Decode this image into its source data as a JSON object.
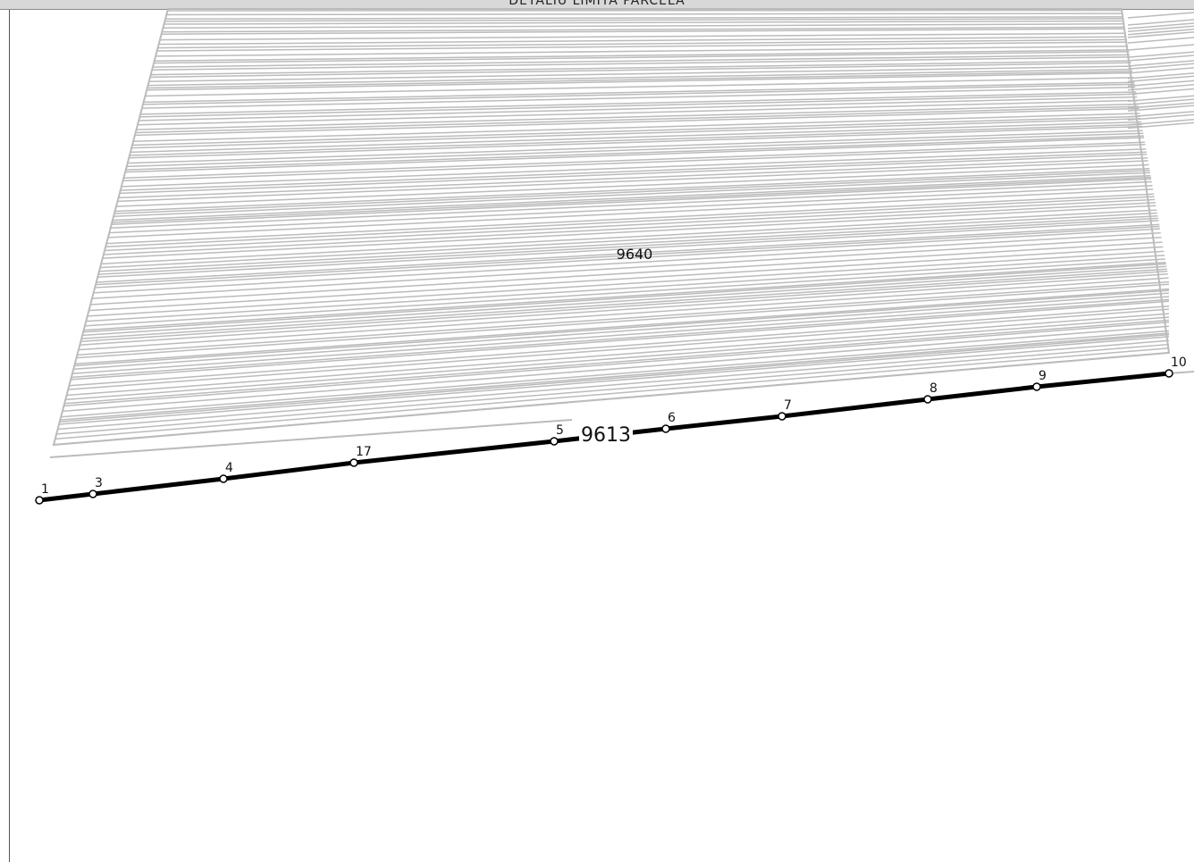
{
  "header": {
    "title": "DETALIU LIMITA PARCELA"
  },
  "parcels": [
    {
      "label": "9640"
    },
    {
      "label": "9613"
    }
  ],
  "points": [
    {
      "label": "1"
    },
    {
      "label": "3"
    },
    {
      "label": "4"
    },
    {
      "label": "17"
    },
    {
      "label": "5"
    },
    {
      "label": "6"
    },
    {
      "label": "7"
    },
    {
      "label": "8"
    },
    {
      "label": "9"
    },
    {
      "label": "10"
    }
  ]
}
